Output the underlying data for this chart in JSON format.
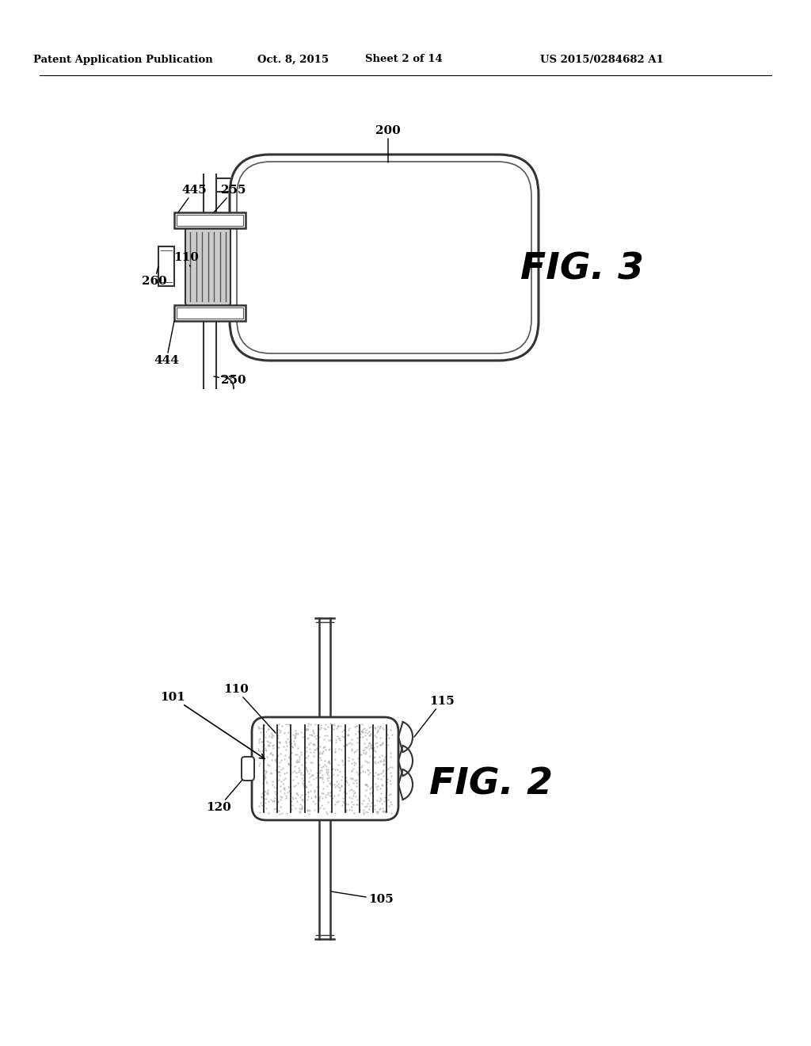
{
  "bg_color": "#ffffff",
  "header_text": "Patent Application Publication",
  "header_date": "Oct. 8, 2015",
  "header_sheet": "Sheet 2 of 14",
  "header_patent": "US 2015/0284682 A1",
  "fig3_label": "FIG. 3",
  "fig2_label": "FIG. 2"
}
